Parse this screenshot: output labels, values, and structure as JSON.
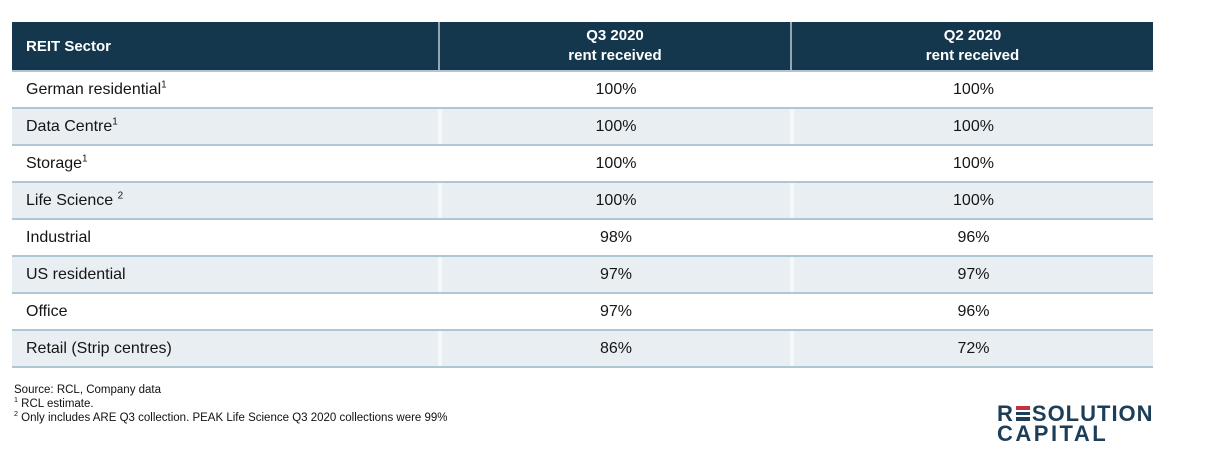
{
  "table": {
    "header": {
      "col1": "REIT Sector",
      "col2_line1": "Q3 2020",
      "col2_line2": "rent received",
      "col3_line1": "Q2 2020",
      "col3_line2": "rent received"
    },
    "rows": [
      {
        "sector": "German residential",
        "sup": "1",
        "q3": "100%",
        "q2": "100%"
      },
      {
        "sector": "Data Centre",
        "sup": "1",
        "q3": "100%",
        "q2": "100%"
      },
      {
        "sector": "Storage",
        "sup": "1",
        "q3": "100%",
        "q2": "100%"
      },
      {
        "sector": "Life Science ",
        "sup": "2",
        "q3": "100%",
        "q2": "100%"
      },
      {
        "sector": "Industrial",
        "sup": "",
        "q3": "98%",
        "q2": "96%"
      },
      {
        "sector": "US residential",
        "sup": "",
        "q3": "97%",
        "q2": "97%"
      },
      {
        "sector": "Office",
        "sup": "",
        "q3": "97%",
        "q2": "96%"
      },
      {
        "sector": "Retail (Strip centres)",
        "sup": "",
        "q3": "86%",
        "q2": "72%"
      }
    ]
  },
  "footnotes": {
    "source": "Source: RCL, Company data",
    "note1_sup": "1",
    "note1": " RCL estimate.",
    "note2_sup": "2",
    "note2": " Only includes ARE Q3 collection. PEAK Life Science Q3 2020 collections were 99%"
  },
  "logo": {
    "line1_pre": "R",
    "line1_post": "SOLUTION",
    "line2": "CAPITAL"
  },
  "colors": {
    "header_bg": "#15374d",
    "stripe_bg": "#e8eef2",
    "row_border": "#afc7d4",
    "logo_navy": "#1d3e59",
    "logo_red": "#c4323f"
  },
  "chart_data": {
    "type": "table",
    "title": "",
    "columns": [
      "REIT Sector",
      "Q3 2020 rent received",
      "Q2 2020 rent received"
    ],
    "rows": [
      [
        "German residential",
        "100%",
        "100%"
      ],
      [
        "Data Centre",
        "100%",
        "100%"
      ],
      [
        "Storage",
        "100%",
        "100%"
      ],
      [
        "Life Science",
        "100%",
        "100%"
      ],
      [
        "Industrial",
        "98%",
        "96%"
      ],
      [
        "US residential",
        "97%",
        "97%"
      ],
      [
        "Office",
        "97%",
        "96%"
      ],
      [
        "Retail (Strip centres)",
        "86%",
        "72%"
      ]
    ]
  }
}
